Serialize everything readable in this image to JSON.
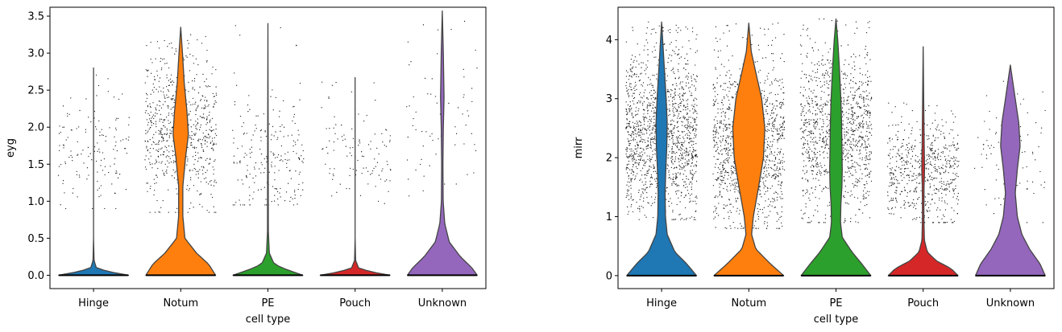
{
  "chart_data": [
    {
      "type": "violin",
      "xlabel": "cell type",
      "ylabel": "eyg",
      "categories": [
        "Hinge",
        "Notum",
        "PE",
        "Pouch",
        "Unknown"
      ],
      "colors": [
        "#1f77b4",
        "#ff7f0e",
        "#2ca02c",
        "#d62728",
        "#9467bd"
      ],
      "ylim": [
        -0.18,
        3.62
      ],
      "yticks": [
        0.0,
        0.5,
        1.0,
        1.5,
        2.0,
        2.5,
        3.0,
        3.5
      ],
      "ytick_labels": [
        "0.0",
        "0.5",
        "1.0",
        "1.5",
        "2.0",
        "2.5",
        "3.0",
        "3.5"
      ],
      "series": [
        {
          "category": "Hinge",
          "max_value": 2.8,
          "density": [
            [
              0.0,
              1.0
            ],
            [
              0.05,
              0.42
            ],
            [
              0.1,
              0.08
            ],
            [
              0.2,
              0.015
            ],
            [
              0.5,
              0.0
            ],
            [
              2.8,
              0.0
            ]
          ],
          "jitter_count": 140,
          "jitter_range": [
            0.9,
            2.8
          ],
          "jitter_center": 1.7
        },
        {
          "category": "Notum",
          "max_value": 3.35,
          "density": [
            [
              0.0,
              1.0
            ],
            [
              0.15,
              0.8
            ],
            [
              0.3,
              0.45
            ],
            [
              0.5,
              0.12
            ],
            [
              0.8,
              0.06
            ],
            [
              1.2,
              0.06
            ],
            [
              1.6,
              0.14
            ],
            [
              1.9,
              0.22
            ],
            [
              2.2,
              0.18
            ],
            [
              2.6,
              0.1
            ],
            [
              3.0,
              0.05
            ],
            [
              3.35,
              0.0
            ]
          ],
          "jitter_count": 700,
          "jitter_range": [
            0.85,
            3.25
          ],
          "jitter_center": 1.95
        },
        {
          "category": "PE",
          "max_value": 3.4,
          "density": [
            [
              0.0,
              1.0
            ],
            [
              0.08,
              0.52
            ],
            [
              0.15,
              0.18
            ],
            [
              0.3,
              0.04
            ],
            [
              0.6,
              0.012
            ],
            [
              3.4,
              0.0
            ]
          ],
          "jitter_count": 220,
          "jitter_range": [
            0.95,
            3.4
          ],
          "jitter_center": 1.55
        },
        {
          "category": "Pouch",
          "max_value": 2.67,
          "density": [
            [
              0.0,
              1.0
            ],
            [
              0.05,
              0.42
            ],
            [
              0.1,
              0.1
            ],
            [
              0.2,
              0.015
            ],
            [
              0.5,
              0.0
            ],
            [
              2.67,
              0.0
            ]
          ],
          "jitter_count": 110,
          "jitter_range": [
            0.95,
            2.67
          ],
          "jitter_center": 1.65
        },
        {
          "category": "Unknown",
          "max_value": 3.57,
          "density": [
            [
              0.0,
              1.0
            ],
            [
              0.1,
              0.85
            ],
            [
              0.25,
              0.52
            ],
            [
              0.45,
              0.2
            ],
            [
              0.7,
              0.07
            ],
            [
              1.0,
              0.025
            ],
            [
              1.5,
              0.018
            ],
            [
              2.0,
              0.03
            ],
            [
              2.4,
              0.05
            ],
            [
              3.0,
              0.03
            ],
            [
              3.57,
              0.0
            ]
          ],
          "jitter_count": 70,
          "jitter_range": [
            0.9,
            3.55
          ],
          "jitter_center": 2.0
        }
      ]
    },
    {
      "type": "violin",
      "xlabel": "cell type",
      "ylabel": "mirr",
      "categories": [
        "Hinge",
        "Notum",
        "PE",
        "Pouch",
        "Unknown"
      ],
      "colors": [
        "#1f77b4",
        "#ff7f0e",
        "#2ca02c",
        "#d62728",
        "#9467bd"
      ],
      "ylim": [
        -0.22,
        4.55
      ],
      "yticks": [
        0,
        1,
        2,
        3,
        4
      ],
      "ytick_labels": [
        "0",
        "1",
        "2",
        "3",
        "4"
      ],
      "series": [
        {
          "category": "Hinge",
          "max_value": 4.3,
          "density": [
            [
              0.0,
              1.0
            ],
            [
              0.2,
              0.72
            ],
            [
              0.4,
              0.38
            ],
            [
              0.7,
              0.16
            ],
            [
              1.0,
              0.11
            ],
            [
              1.4,
              0.1
            ],
            [
              1.8,
              0.12
            ],
            [
              2.2,
              0.15
            ],
            [
              2.6,
              0.16
            ],
            [
              3.0,
              0.13
            ],
            [
              3.4,
              0.09
            ],
            [
              3.8,
              0.05
            ],
            [
              4.3,
              0.0
            ]
          ],
          "jitter_count": 1400,
          "jitter_range": [
            0.95,
            4.3
          ],
          "jitter_center": 2.4
        },
        {
          "category": "Notum",
          "max_value": 4.28,
          "density": [
            [
              0.0,
              1.0
            ],
            [
              0.2,
              0.62
            ],
            [
              0.45,
              0.2
            ],
            [
              0.7,
              0.08
            ],
            [
              1.0,
              0.13
            ],
            [
              1.5,
              0.28
            ],
            [
              2.0,
              0.42
            ],
            [
              2.5,
              0.46
            ],
            [
              3.0,
              0.37
            ],
            [
              3.5,
              0.18
            ],
            [
              3.8,
              0.07
            ],
            [
              4.28,
              0.0
            ]
          ],
          "jitter_count": 1250,
          "jitter_range": [
            0.8,
            4.28
          ],
          "jitter_center": 2.2
        },
        {
          "category": "PE",
          "max_value": 4.35,
          "density": [
            [
              0.0,
              1.0
            ],
            [
              0.2,
              0.74
            ],
            [
              0.4,
              0.46
            ],
            [
              0.65,
              0.18
            ],
            [
              0.9,
              0.13
            ],
            [
              1.2,
              0.14
            ],
            [
              1.5,
              0.17
            ],
            [
              1.8,
              0.18
            ],
            [
              2.2,
              0.17
            ],
            [
              2.6,
              0.16
            ],
            [
              3.0,
              0.14
            ],
            [
              3.5,
              0.1
            ],
            [
              4.0,
              0.05
            ],
            [
              4.35,
              0.0
            ]
          ],
          "jitter_count": 1100,
          "jitter_range": [
            0.9,
            4.35
          ],
          "jitter_center": 2.4
        },
        {
          "category": "Pouch",
          "max_value": 3.88,
          "density": [
            [
              0.0,
              1.0
            ],
            [
              0.12,
              0.8
            ],
            [
              0.25,
              0.38
            ],
            [
              0.4,
              0.12
            ],
            [
              0.6,
              0.035
            ],
            [
              1.0,
              0.02
            ],
            [
              1.5,
              0.025
            ],
            [
              1.8,
              0.04
            ],
            [
              2.2,
              0.03
            ],
            [
              3.0,
              0.015
            ],
            [
              3.88,
              0.0
            ]
          ],
          "jitter_count": 600,
          "jitter_range": [
            0.9,
            3.0
          ],
          "jitter_center": 1.75
        },
        {
          "category": "Unknown",
          "max_value": 3.57,
          "density": [
            [
              0.0,
              1.0
            ],
            [
              0.2,
              0.85
            ],
            [
              0.45,
              0.55
            ],
            [
              0.7,
              0.33
            ],
            [
              1.0,
              0.2
            ],
            [
              1.4,
              0.14
            ],
            [
              1.8,
              0.2
            ],
            [
              2.2,
              0.28
            ],
            [
              2.6,
              0.24
            ],
            [
              3.0,
              0.14
            ],
            [
              3.57,
              0.0
            ]
          ],
          "jitter_count": 100,
          "jitter_range": [
            0.9,
            3.4
          ],
          "jitter_center": 2.1
        }
      ]
    }
  ]
}
